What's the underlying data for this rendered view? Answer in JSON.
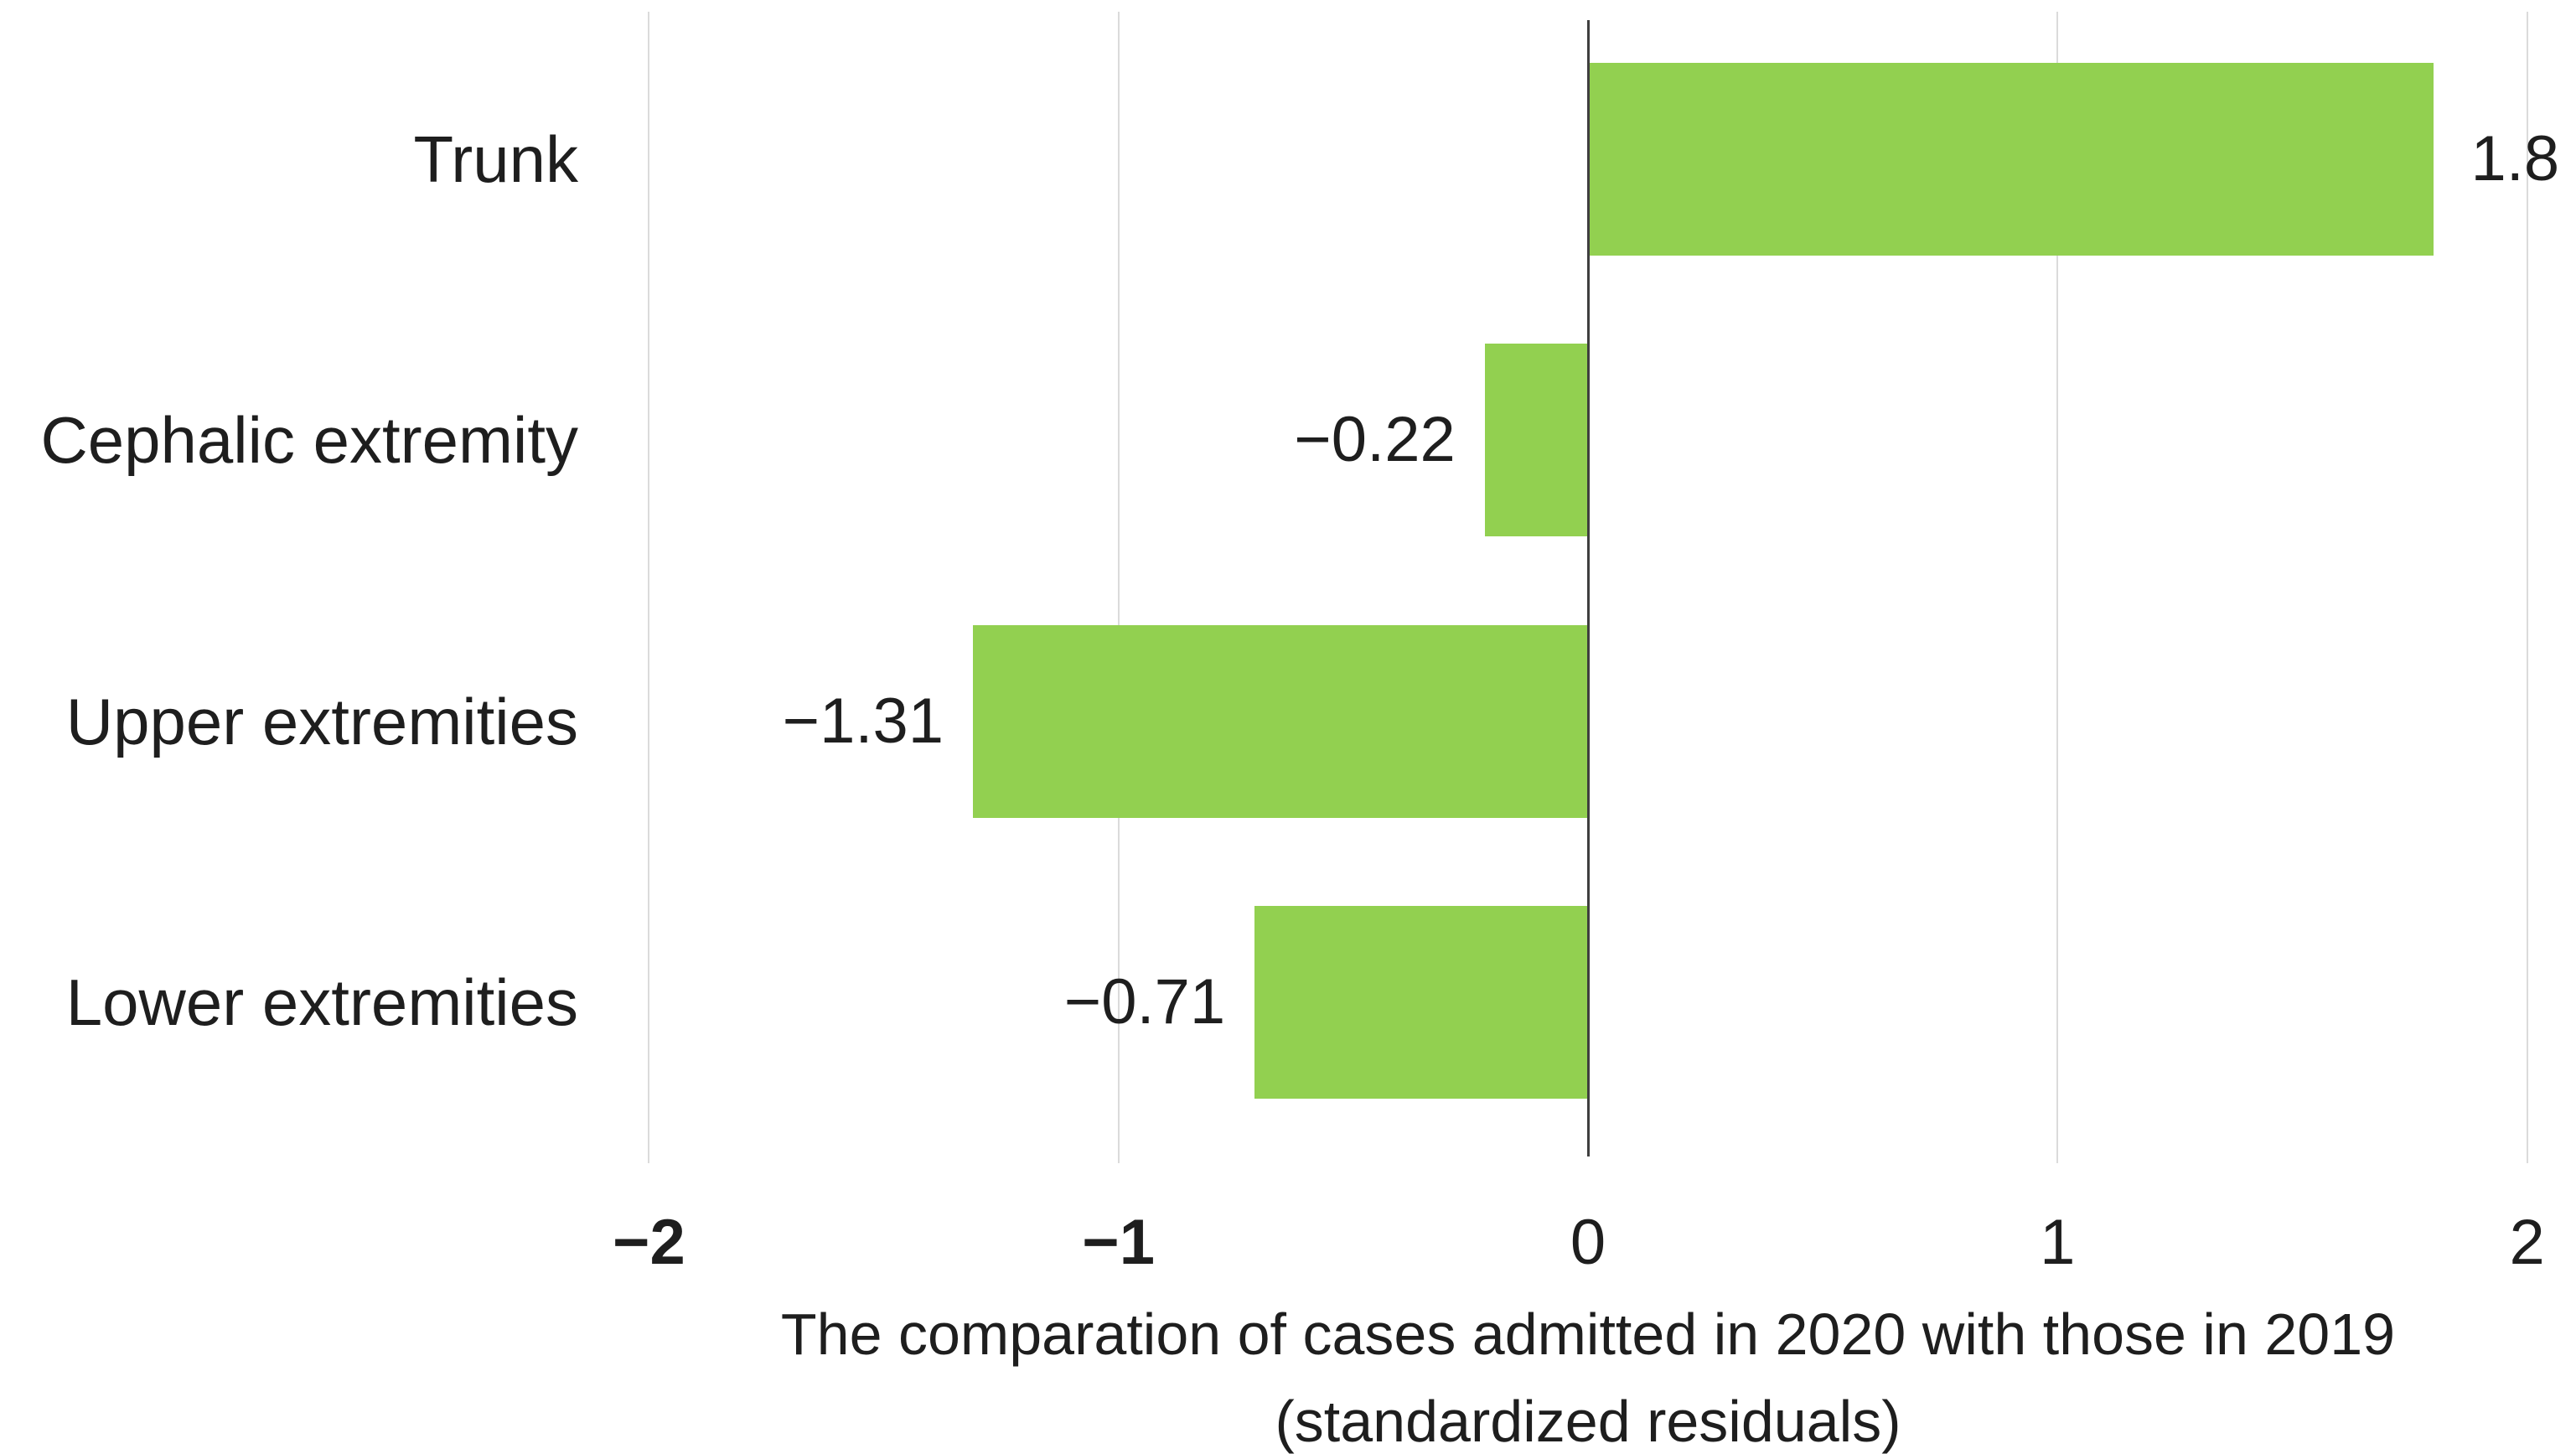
{
  "chart_data": {
    "type": "bar",
    "orientation": "horizontal",
    "categories": [
      "Trunk",
      "Cephalic extremity",
      "Upper extremities",
      "Lower extremities"
    ],
    "values": [
      1.8,
      -0.22,
      -1.31,
      -0.71
    ],
    "data_labels": [
      "1.8",
      "−0.22",
      "−1.31",
      "−0.71"
    ],
    "xlabel": "The comparation of cases admitted in 2020 with those in 2019 (standardized residuals)",
    "xlabel_lines": [
      "The comparation of cases admitted in 2020 with those in 2019",
      "(standardized residuals)"
    ],
    "xlim": [
      -2,
      2
    ],
    "xticks": [
      {
        "value": -2,
        "label": "−2",
        "bold": true
      },
      {
        "value": -1,
        "label": "−1",
        "bold": true
      },
      {
        "value": 0,
        "label": "0",
        "bold": false
      },
      {
        "value": 1,
        "label": "1",
        "bold": false
      },
      {
        "value": 2,
        "label": "2",
        "bold": false
      }
    ],
    "grid": true,
    "legend": false,
    "colors": {
      "bar": "#92D050",
      "gridline": "#DBDBDB",
      "zero_line": "#3F3F3F",
      "text": "#1E1E1E"
    }
  }
}
